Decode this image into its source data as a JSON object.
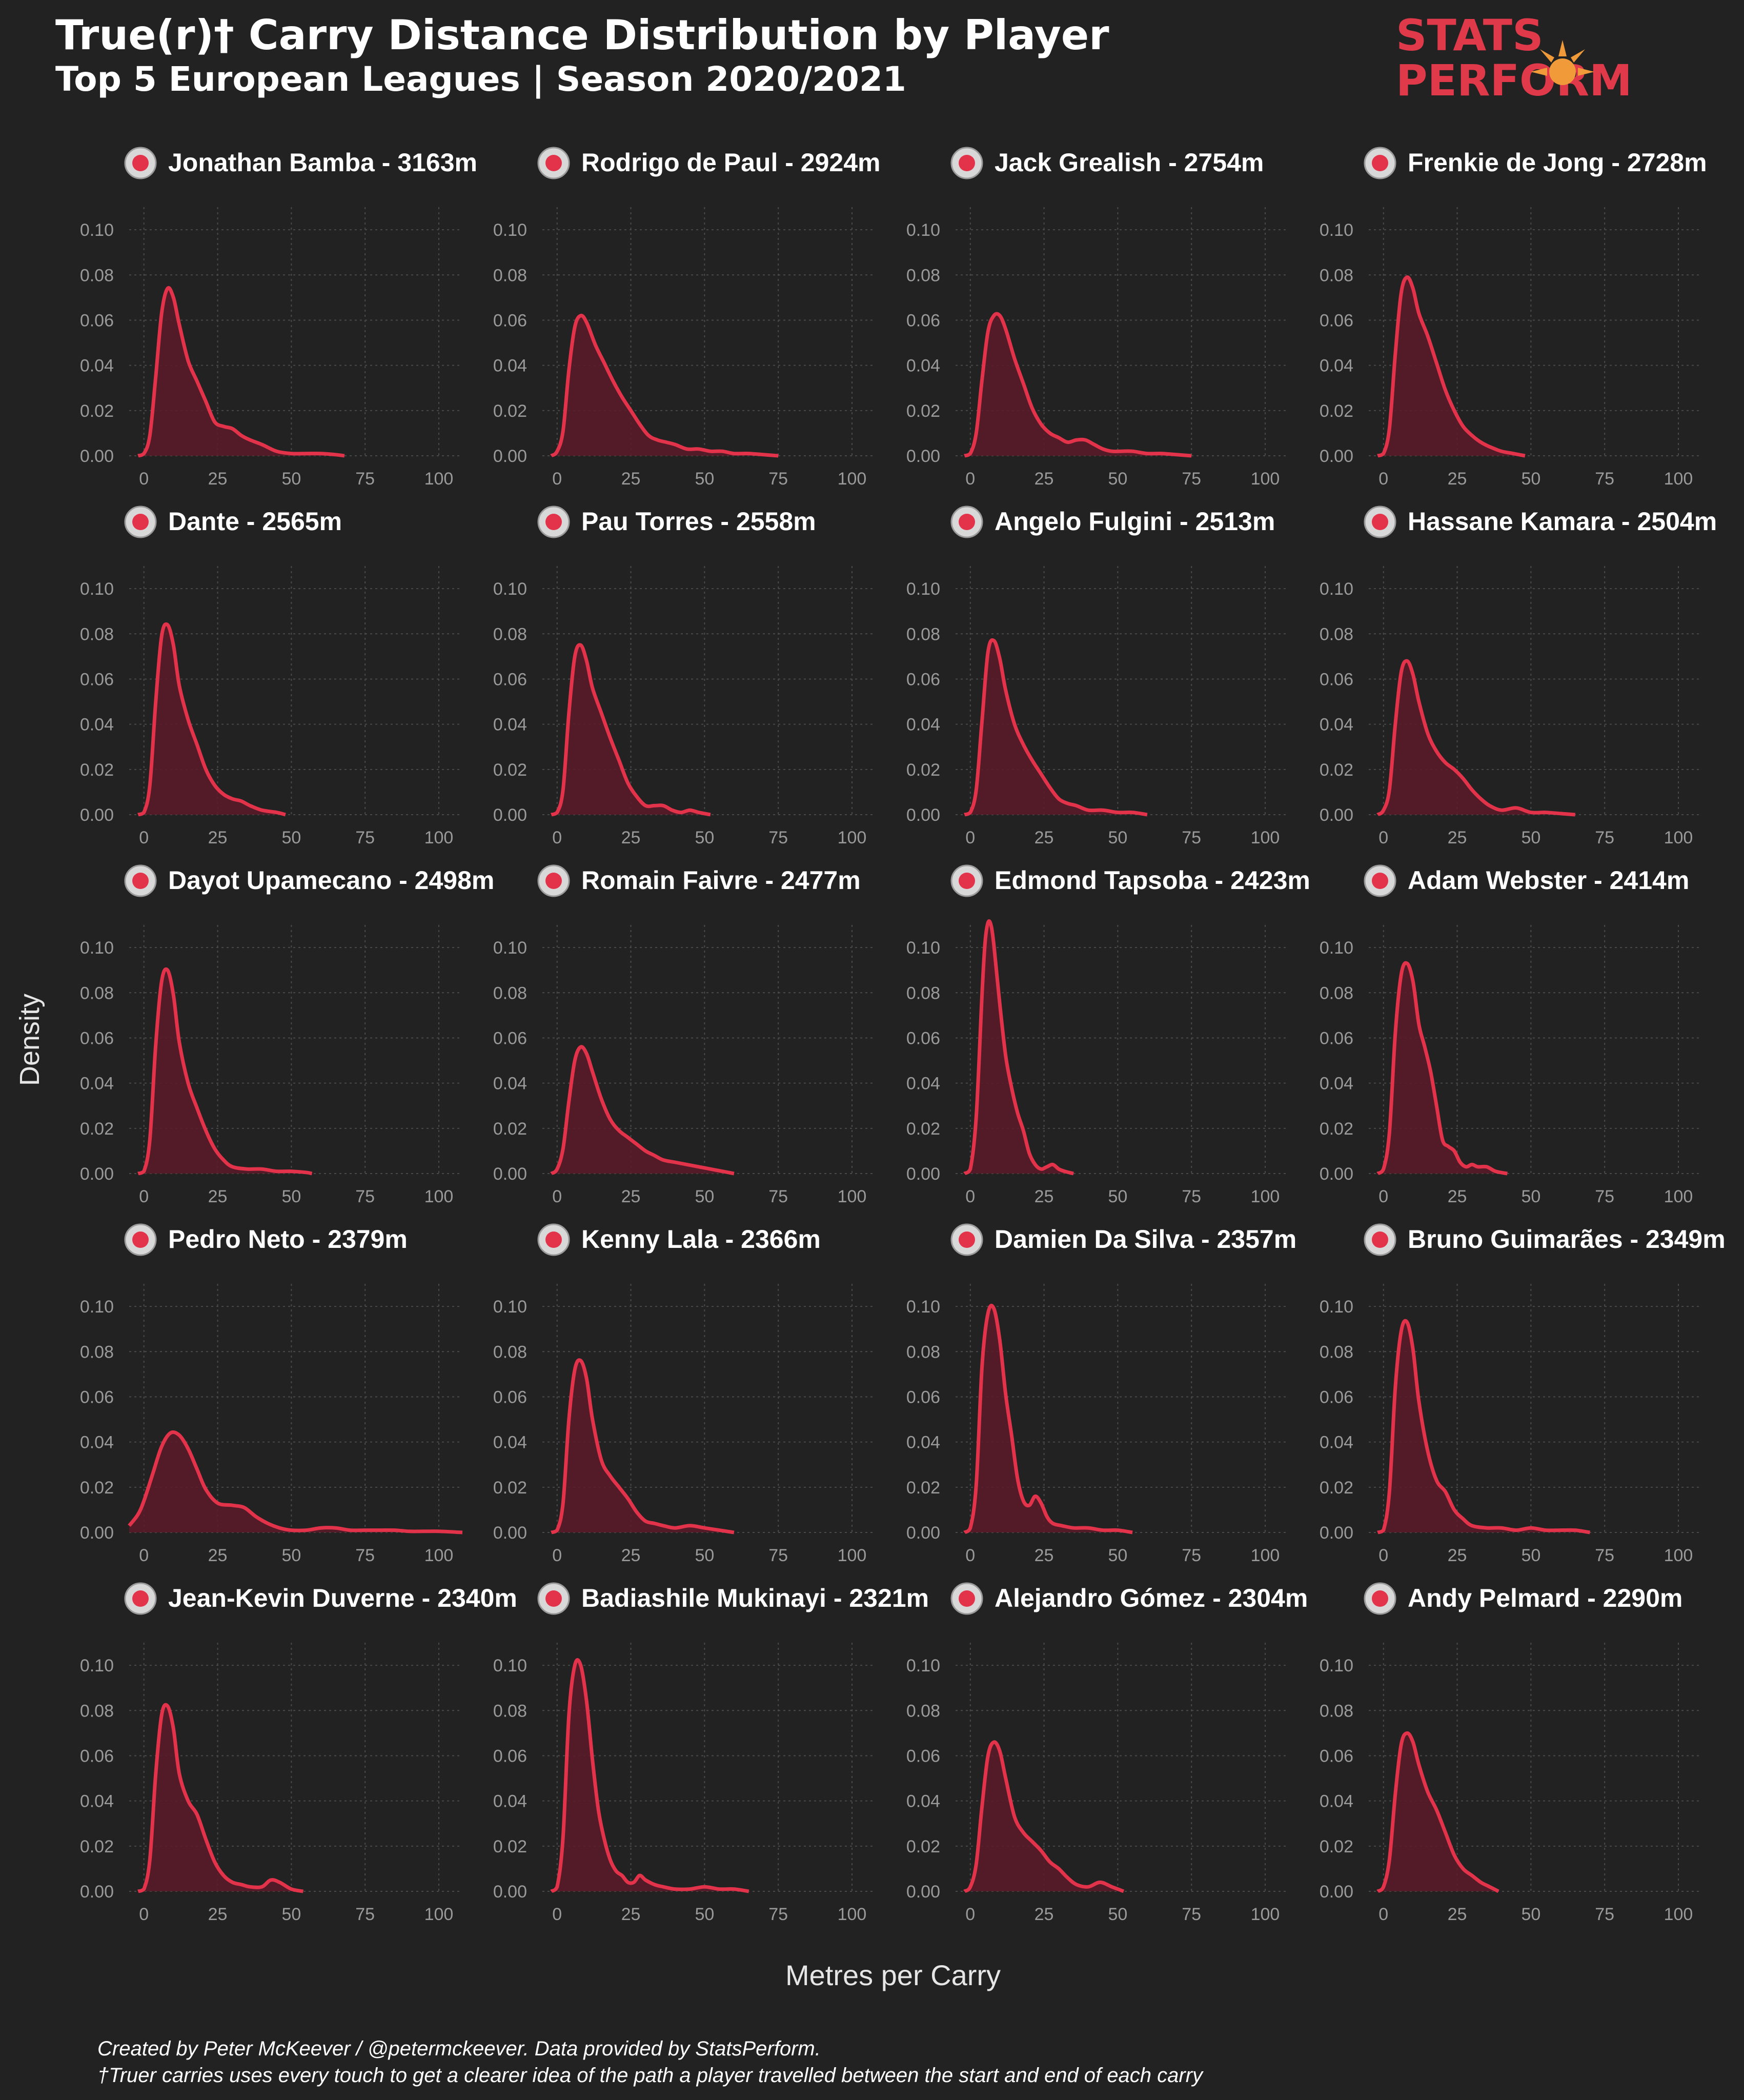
{
  "header": {
    "title": "True(r)† Carry Distance Distribution by Player",
    "subtitle": "Top 5 European Leagues | Season 2020/2021",
    "logo_text": [
      "STATS",
      "PERFORM"
    ]
  },
  "footer": {
    "caption_1": "Created by Peter McKeever / @petermckeever. Data provided by StatsPerform.",
    "caption_2": "†Truer carries uses every touch to get a clearer idea of the path a player travelled between the start and end of each carry"
  },
  "colors": {
    "background": "#222222",
    "line": "#e3334b",
    "fill": "#5a1a28",
    "grid": "#4a4a4a",
    "logo_red": "#e0394a",
    "logo_orange": "#f09a3a"
  },
  "chart_data": {
    "type": "area",
    "xlabel": "Metres per Carry",
    "ylabel": "Density",
    "xlim": [
      -5,
      108
    ],
    "ylim": [
      0,
      0.11
    ],
    "xticks": [
      0,
      25,
      50,
      75,
      100
    ],
    "yticks": [
      "0.00",
      "0.02",
      "0.04",
      "0.06",
      "0.08",
      "0.10"
    ],
    "grid": true,
    "layout": {
      "rows": 5,
      "cols": 4
    },
    "panels": [
      {
        "title": "Jonathan Bamba - 3163m",
        "badge": "lille-badge-icon",
        "x": [
          -2,
          0,
          2,
          4,
          6,
          8,
          10,
          12,
          15,
          18,
          21,
          24,
          27,
          30,
          33,
          36,
          40,
          45,
          50,
          55,
          60,
          65,
          68
        ],
        "y": [
          0,
          0.001,
          0.009,
          0.035,
          0.063,
          0.074,
          0.07,
          0.058,
          0.042,
          0.033,
          0.024,
          0.015,
          0.013,
          0.012,
          0.009,
          0.007,
          0.005,
          0.002,
          0.001,
          0.001,
          0.001,
          0.0005,
          0
        ]
      },
      {
        "title": "Rodrigo de Paul - 2924m",
        "badge": "udinese-badge-icon",
        "x": [
          -2,
          0,
          2,
          4,
          6,
          8,
          10,
          13,
          16,
          19,
          22,
          25,
          28,
          31,
          34,
          37,
          40,
          44,
          48,
          52,
          56,
          60,
          65,
          70,
          75
        ],
        "y": [
          0,
          0.002,
          0.011,
          0.038,
          0.057,
          0.062,
          0.059,
          0.049,
          0.041,
          0.033,
          0.026,
          0.02,
          0.014,
          0.009,
          0.007,
          0.006,
          0.005,
          0.003,
          0.003,
          0.002,
          0.002,
          0.001,
          0.001,
          0.0005,
          0
        ]
      },
      {
        "title": "Jack Grealish - 2754m",
        "badge": "aston-villa-badge-icon",
        "x": [
          -2,
          0,
          2,
          4,
          6,
          8,
          10,
          12,
          15,
          18,
          21,
          24,
          27,
          30,
          33,
          36,
          39,
          42,
          45,
          48,
          51,
          55,
          60,
          65,
          70,
          75
        ],
        "y": [
          0,
          0.001,
          0.01,
          0.034,
          0.055,
          0.062,
          0.062,
          0.056,
          0.043,
          0.032,
          0.021,
          0.014,
          0.01,
          0.008,
          0.006,
          0.007,
          0.007,
          0.005,
          0.003,
          0.002,
          0.002,
          0.002,
          0.001,
          0.001,
          0.0005,
          0
        ]
      },
      {
        "title": "Frenkie de Jong - 2728m",
        "badge": "barcelona-badge-icon",
        "x": [
          -2,
          0,
          2,
          4,
          6,
          8,
          10,
          12,
          15,
          18,
          21,
          24,
          27,
          30,
          33,
          36,
          40,
          44,
          48
        ],
        "y": [
          0,
          0.001,
          0.012,
          0.045,
          0.072,
          0.079,
          0.074,
          0.063,
          0.053,
          0.041,
          0.029,
          0.02,
          0.013,
          0.009,
          0.006,
          0.004,
          0.002,
          0.001,
          0
        ]
      },
      {
        "title": "Dante - 2565m",
        "badge": "nice-badge-icon",
        "x": [
          -2,
          0,
          2,
          4,
          6,
          8,
          10,
          12,
          15,
          18,
          21,
          24,
          27,
          30,
          33,
          36,
          40,
          45,
          48
        ],
        "y": [
          0,
          0.001,
          0.013,
          0.05,
          0.079,
          0.084,
          0.075,
          0.057,
          0.042,
          0.031,
          0.02,
          0.013,
          0.009,
          0.007,
          0.006,
          0.004,
          0.002,
          0.001,
          0
        ]
      },
      {
        "title": "Pau Torres - 2558m",
        "badge": "villarreal-badge-icon",
        "x": [
          -2,
          0,
          2,
          4,
          6,
          8,
          10,
          12,
          15,
          18,
          21,
          24,
          27,
          30,
          33,
          36,
          39,
          42,
          45,
          48,
          52
        ],
        "y": [
          0,
          0.001,
          0.011,
          0.045,
          0.07,
          0.075,
          0.068,
          0.056,
          0.045,
          0.034,
          0.024,
          0.014,
          0.008,
          0.004,
          0.004,
          0.004,
          0.002,
          0.001,
          0.002,
          0.001,
          0
        ]
      },
      {
        "title": "Angelo Fulgini - 2513m",
        "badge": "angers-badge-icon",
        "x": [
          -2,
          0,
          2,
          4,
          6,
          8,
          10,
          12,
          15,
          18,
          21,
          24,
          27,
          30,
          33,
          36,
          40,
          45,
          50,
          55,
          60
        ],
        "y": [
          0,
          0.001,
          0.011,
          0.042,
          0.072,
          0.077,
          0.069,
          0.055,
          0.04,
          0.031,
          0.024,
          0.018,
          0.012,
          0.007,
          0.005,
          0.004,
          0.002,
          0.002,
          0.001,
          0.001,
          0
        ]
      },
      {
        "title": "Hassane Kamara - 2504m",
        "badge": "nice-badge-icon",
        "x": [
          -2,
          0,
          2,
          4,
          6,
          8,
          10,
          12,
          15,
          18,
          21,
          24,
          27,
          30,
          33,
          36,
          40,
          45,
          50,
          55,
          60,
          65
        ],
        "y": [
          0,
          0.002,
          0.011,
          0.04,
          0.063,
          0.068,
          0.062,
          0.05,
          0.036,
          0.028,
          0.023,
          0.02,
          0.016,
          0.011,
          0.007,
          0.004,
          0.002,
          0.003,
          0.001,
          0.001,
          0.0005,
          0
        ]
      },
      {
        "title": "Dayot Upamecano - 2498m",
        "badge": "leipzig-badge-icon",
        "x": [
          -2,
          0,
          2,
          4,
          6,
          8,
          10,
          12,
          15,
          18,
          21,
          24,
          27,
          30,
          35,
          40,
          45,
          50,
          55,
          57
        ],
        "y": [
          0,
          0.001,
          0.015,
          0.057,
          0.085,
          0.09,
          0.079,
          0.058,
          0.04,
          0.029,
          0.019,
          0.011,
          0.006,
          0.003,
          0.002,
          0.002,
          0.001,
          0.001,
          0.0005,
          0
        ]
      },
      {
        "title": "Romain Faivre - 2477m",
        "badge": "brest-badge-icon",
        "x": [
          -2,
          0,
          2,
          4,
          6,
          8,
          10,
          12,
          15,
          18,
          21,
          24,
          27,
          30,
          33,
          36,
          40,
          44,
          48,
          52,
          56,
          60
        ],
        "y": [
          0,
          0.002,
          0.011,
          0.032,
          0.05,
          0.056,
          0.053,
          0.045,
          0.033,
          0.024,
          0.019,
          0.016,
          0.013,
          0.01,
          0.008,
          0.006,
          0.005,
          0.004,
          0.003,
          0.002,
          0.001,
          0
        ]
      },
      {
        "title": "Edmond Tapsoba - 2423m",
        "badge": "leverkusen-badge-icon",
        "x": [
          -2,
          0,
          2,
          4,
          5,
          6,
          7,
          8,
          10,
          12,
          14,
          16,
          18,
          20,
          22,
          24,
          26,
          28,
          30,
          32,
          35
        ],
        "y": [
          0,
          0.002,
          0.025,
          0.08,
          0.102,
          0.111,
          0.11,
          0.101,
          0.075,
          0.052,
          0.038,
          0.027,
          0.019,
          0.009,
          0.004,
          0.002,
          0.003,
          0.004,
          0.002,
          0.001,
          0
        ]
      },
      {
        "title": "Adam Webster - 2414m",
        "badge": "brighton-badge-icon",
        "x": [
          -2,
          0,
          2,
          4,
          6,
          8,
          10,
          12,
          14,
          16,
          18,
          20,
          22,
          24,
          26,
          28,
          30,
          32,
          35,
          38,
          42
        ],
        "y": [
          0,
          0.002,
          0.018,
          0.062,
          0.088,
          0.093,
          0.085,
          0.066,
          0.056,
          0.045,
          0.03,
          0.015,
          0.012,
          0.01,
          0.005,
          0.003,
          0.004,
          0.003,
          0.003,
          0.001,
          0
        ]
      },
      {
        "title": "Pedro Neto - 2379m",
        "badge": "wolves-badge-icon",
        "x": [
          -5,
          -2,
          0,
          3,
          6,
          9,
          12,
          15,
          18,
          21,
          25,
          30,
          34,
          38,
          42,
          46,
          50,
          55,
          60,
          65,
          70,
          75,
          80,
          85,
          90,
          95,
          100,
          108
        ],
        "y": [
          0.003,
          0.008,
          0.014,
          0.026,
          0.038,
          0.044,
          0.043,
          0.037,
          0.028,
          0.019,
          0.013,
          0.012,
          0.011,
          0.007,
          0.004,
          0.002,
          0.001,
          0.001,
          0.002,
          0.002,
          0.001,
          0.001,
          0.001,
          0.001,
          0.0005,
          0.0005,
          0.0005,
          0
        ]
      },
      {
        "title": "Kenny Lala - 2366m",
        "badge": "strasbourg-badge-icon",
        "x": [
          -2,
          0,
          2,
          4,
          6,
          8,
          10,
          12,
          15,
          18,
          21,
          24,
          27,
          30,
          33,
          36,
          40,
          45,
          50,
          55,
          60
        ],
        "y": [
          0,
          0.001,
          0.013,
          0.05,
          0.072,
          0.076,
          0.068,
          0.05,
          0.032,
          0.025,
          0.02,
          0.015,
          0.009,
          0.005,
          0.004,
          0.003,
          0.002,
          0.003,
          0.002,
          0.001,
          0
        ]
      },
      {
        "title": "Damien Da Silva - 2357m",
        "badge": "rennes-badge-icon",
        "x": [
          -2,
          0,
          2,
          4,
          6,
          8,
          10,
          12,
          14,
          16,
          18,
          20,
          22,
          24,
          26,
          28,
          31,
          35,
          40,
          45,
          50,
          55
        ],
        "y": [
          0,
          0.002,
          0.021,
          0.074,
          0.097,
          0.099,
          0.085,
          0.061,
          0.043,
          0.024,
          0.014,
          0.012,
          0.016,
          0.013,
          0.007,
          0.004,
          0.003,
          0.002,
          0.002,
          0.001,
          0.001,
          0
        ]
      },
      {
        "title": "Bruno Guimarães - 2349m",
        "badge": "lyon-badge-icon",
        "x": [
          -2,
          0,
          2,
          4,
          6,
          8,
          10,
          12,
          15,
          18,
          21,
          24,
          27,
          30,
          35,
          40,
          45,
          50,
          55,
          60,
          65,
          70
        ],
        "y": [
          0,
          0.001,
          0.018,
          0.064,
          0.089,
          0.093,
          0.081,
          0.058,
          0.036,
          0.023,
          0.018,
          0.01,
          0.006,
          0.003,
          0.002,
          0.002,
          0.001,
          0.002,
          0.001,
          0.001,
          0.001,
          0
        ]
      },
      {
        "title": "Jean-Kevin Duverne - 2340m",
        "badge": "brest-badge-icon",
        "x": [
          -2,
          0,
          2,
          4,
          6,
          8,
          10,
          12,
          15,
          18,
          21,
          24,
          27,
          30,
          33,
          36,
          40,
          43,
          46,
          50,
          54
        ],
        "y": [
          0,
          0.001,
          0.014,
          0.052,
          0.078,
          0.082,
          0.072,
          0.052,
          0.04,
          0.034,
          0.023,
          0.013,
          0.007,
          0.004,
          0.003,
          0.002,
          0.002,
          0.005,
          0.004,
          0.001,
          0
        ]
      },
      {
        "title": "Badiashile Mukinayi - 2321m",
        "badge": "monaco-badge-icon",
        "x": [
          -2,
          0,
          2,
          4,
          6,
          8,
          10,
          12,
          14,
          16,
          18,
          20,
          22,
          24,
          26,
          28,
          30,
          33,
          36,
          40,
          45,
          50,
          55,
          60,
          65
        ],
        "y": [
          0,
          0.002,
          0.024,
          0.078,
          0.1,
          0.1,
          0.084,
          0.058,
          0.036,
          0.023,
          0.014,
          0.009,
          0.007,
          0.004,
          0.004,
          0.007,
          0.005,
          0.003,
          0.002,
          0.001,
          0.001,
          0.002,
          0.001,
          0.001,
          0
        ]
      },
      {
        "title": "Alejandro Gómez - 2304m",
        "badge": "atalanta-badge-icon",
        "x": [
          -2,
          0,
          2,
          4,
          6,
          8,
          10,
          12,
          15,
          18,
          21,
          24,
          27,
          30,
          33,
          36,
          40,
          44,
          48,
          52
        ],
        "y": [
          0,
          0.002,
          0.012,
          0.038,
          0.06,
          0.066,
          0.062,
          0.05,
          0.033,
          0.026,
          0.022,
          0.018,
          0.013,
          0.01,
          0.006,
          0.003,
          0.002,
          0.004,
          0.002,
          0
        ]
      },
      {
        "title": "Andy Pelmard - 2290m",
        "badge": "nice-badge-icon",
        "x": [
          -2,
          0,
          2,
          4,
          6,
          8,
          10,
          12,
          15,
          18,
          21,
          24,
          27,
          30,
          33,
          36,
          39
        ],
        "y": [
          0,
          0.002,
          0.014,
          0.043,
          0.065,
          0.07,
          0.066,
          0.056,
          0.044,
          0.036,
          0.026,
          0.016,
          0.01,
          0.007,
          0.004,
          0.002,
          0
        ]
      }
    ]
  }
}
